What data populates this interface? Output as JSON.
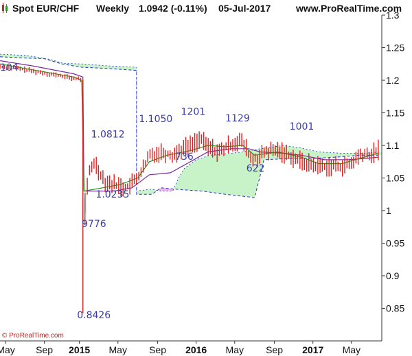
{
  "header": {
    "instrument": "Spot EUR/CHF",
    "period": "Weekly",
    "last": "1.0942 (-0.11%)",
    "date": "05-Jul-2017",
    "site": "www.ProRealTime.com"
  },
  "copyright": "© ProRealTime.com",
  "colors": {
    "candle": "#e02020",
    "tenkan": "#1a9a1a",
    "kijun": "#7a2a9a",
    "cloud_bull": "#c8f2c8",
    "cloud_bear": "#f7b3e3",
    "span_line": "#2233cc",
    "annotation": "#3a3aa8"
  },
  "chart_data": {
    "type": "line",
    "title": "",
    "xlabel": "",
    "ylabel": "",
    "ylim": [
      0.8,
      1.3
    ],
    "yticks": [
      {
        "v": 0.85,
        "label": "0.85"
      },
      {
        "v": 0.9,
        "label": "0.9"
      },
      {
        "v": 0.95,
        "label": "0.95"
      },
      {
        "v": 1.0,
        "label": "1"
      },
      {
        "v": 1.05,
        "label": "1.05"
      },
      {
        "v": 1.1,
        "label": "1.1"
      },
      {
        "v": 1.15,
        "label": "1.15"
      },
      {
        "v": 1.2,
        "label": "1.2"
      },
      {
        "v": 1.25,
        "label": "1.25"
      },
      {
        "v": 1.3,
        "label": "1.3"
      }
    ],
    "xrange": [
      2014.32,
      2017.59
    ],
    "xticks": [
      {
        "t": 2014.37,
        "label": "May",
        "bold": false
      },
      {
        "t": 2014.7,
        "label": "Sep",
        "bold": false
      },
      {
        "t": 2015.0,
        "label": "2015",
        "bold": true
      },
      {
        "t": 2015.33,
        "label": "May",
        "bold": false
      },
      {
        "t": 2015.67,
        "label": "Sep",
        "bold": false
      },
      {
        "t": 2016.0,
        "label": "2016",
        "bold": true
      },
      {
        "t": 2016.33,
        "label": "May",
        "bold": false
      },
      {
        "t": 2016.67,
        "label": "Sep",
        "bold": false
      },
      {
        "t": 2017.0,
        "label": "2017",
        "bold": true
      },
      {
        "t": 2017.33,
        "label": "May",
        "bold": false
      }
    ],
    "price": [
      [
        2014.32,
        1.221
      ],
      [
        2014.45,
        1.219
      ],
      [
        2014.6,
        1.214
      ],
      [
        2014.8,
        1.208
      ],
      [
        2014.95,
        1.203
      ],
      [
        2015.02,
        1.201
      ],
      [
        2015.03,
        0.985
      ],
      [
        2015.06,
        1.028
      ],
      [
        2015.09,
        1.062
      ],
      [
        2015.13,
        1.075
      ],
      [
        2015.17,
        1.06
      ],
      [
        2015.22,
        1.045
      ],
      [
        2015.3,
        1.04
      ],
      [
        2015.4,
        1.035
      ],
      [
        2015.47,
        1.045
      ],
      [
        2015.55,
        1.065
      ],
      [
        2015.6,
        1.085
      ],
      [
        2015.7,
        1.09
      ],
      [
        2015.8,
        1.085
      ],
      [
        2015.88,
        1.095
      ],
      [
        2015.95,
        1.1
      ],
      [
        2016.03,
        1.11
      ],
      [
        2016.1,
        1.098
      ],
      [
        2016.2,
        1.09
      ],
      [
        2016.3,
        1.102
      ],
      [
        2016.37,
        1.108
      ],
      [
        2016.42,
        1.098
      ],
      [
        2016.46,
        1.082
      ],
      [
        2016.48,
        1.078
      ],
      [
        2016.52,
        1.08
      ],
      [
        2016.6,
        1.09
      ],
      [
        2016.7,
        1.092
      ],
      [
        2016.8,
        1.085
      ],
      [
        2016.9,
        1.075
      ],
      [
        2017.0,
        1.07
      ],
      [
        2017.1,
        1.068
      ],
      [
        2017.22,
        1.068
      ],
      [
        2017.32,
        1.07
      ],
      [
        2017.4,
        1.085
      ],
      [
        2017.5,
        1.085
      ],
      [
        2017.56,
        1.094
      ]
    ],
    "tenkan": [
      [
        2014.32,
        1.225
      ],
      [
        2014.6,
        1.216
      ],
      [
        2014.95,
        1.205
      ],
      [
        2015.02,
        1.2
      ],
      [
        2015.04,
        1.03
      ],
      [
        2015.2,
        1.035
      ],
      [
        2015.35,
        1.04
      ],
      [
        2015.5,
        1.05
      ],
      [
        2015.6,
        1.075
      ],
      [
        2015.75,
        1.085
      ],
      [
        2015.95,
        1.092
      ],
      [
        2016.1,
        1.1
      ],
      [
        2016.25,
        1.098
      ],
      [
        2016.4,
        1.1
      ],
      [
        2016.5,
        1.085
      ],
      [
        2016.7,
        1.09
      ],
      [
        2016.9,
        1.082
      ],
      [
        2017.05,
        1.072
      ],
      [
        2017.25,
        1.072
      ],
      [
        2017.4,
        1.08
      ],
      [
        2017.56,
        1.088
      ]
    ],
    "kijun": [
      [
        2014.32,
        1.23
      ],
      [
        2014.6,
        1.222
      ],
      [
        2014.95,
        1.21
      ],
      [
        2015.03,
        1.205
      ],
      [
        2015.04,
        1.03
      ],
      [
        2015.3,
        1.03
      ],
      [
        2015.45,
        1.035
      ],
      [
        2015.6,
        1.055
      ],
      [
        2015.78,
        1.058
      ],
      [
        2015.95,
        1.075
      ],
      [
        2016.1,
        1.09
      ],
      [
        2016.3,
        1.095
      ],
      [
        2016.45,
        1.095
      ],
      [
        2016.55,
        1.09
      ],
      [
        2016.75,
        1.088
      ],
      [
        2016.9,
        1.085
      ],
      [
        2017.1,
        1.078
      ],
      [
        2017.3,
        1.078
      ],
      [
        2017.45,
        1.08
      ],
      [
        2017.56,
        1.082
      ]
    ],
    "spanA": [
      [
        2014.32,
        1.24
      ],
      [
        2014.55,
        1.238
      ],
      [
        2014.75,
        1.232
      ],
      [
        2014.86,
        1.226
      ],
      [
        2015.02,
        1.225
      ],
      [
        2015.25,
        1.222
      ],
      [
        2015.49,
        1.22
      ],
      [
        2015.49,
        1.03
      ],
      [
        2015.62,
        1.033
      ],
      [
        2015.7,
        1.03
      ],
      [
        2015.8,
        1.03
      ],
      [
        2015.85,
        1.05
      ],
      [
        2015.9,
        1.065
      ],
      [
        2016.0,
        1.078
      ],
      [
        2016.12,
        1.085
      ],
      [
        2016.3,
        1.088
      ],
      [
        2016.4,
        1.09
      ],
      [
        2016.55,
        1.095
      ],
      [
        2016.75,
        1.1
      ],
      [
        2016.9,
        1.096
      ],
      [
        2017.05,
        1.09
      ],
      [
        2017.25,
        1.088
      ],
      [
        2017.45,
        1.088
      ],
      [
        2017.56,
        1.09
      ]
    ],
    "spanB": [
      [
        2014.32,
        1.236
      ],
      [
        2014.55,
        1.234
      ],
      [
        2014.7,
        1.233
      ],
      [
        2014.85,
        1.225
      ],
      [
        2015.02,
        1.22
      ],
      [
        2015.25,
        1.218
      ],
      [
        2015.49,
        1.215
      ],
      [
        2015.49,
        1.025
      ],
      [
        2015.62,
        1.025
      ],
      [
        2015.7,
        1.035
      ],
      [
        2015.88,
        1.032
      ],
      [
        2016.05,
        1.03
      ],
      [
        2016.25,
        1.025
      ],
      [
        2016.5,
        1.02
      ],
      [
        2016.55,
        1.055
      ],
      [
        2016.58,
        1.078
      ],
      [
        2016.8,
        1.08
      ],
      [
        2017.0,
        1.08
      ],
      [
        2017.2,
        1.082
      ],
      [
        2017.4,
        1.085
      ],
      [
        2017.56,
        1.085
      ]
    ],
    "annotations": [
      {
        "text": "104",
        "t": 2014.32,
        "v": 1.215
      },
      {
        "text": "0.8426",
        "t": 2014.98,
        "v": 0.835
      },
      {
        "text": "9776",
        "t": 2015.02,
        "v": 0.975
      },
      {
        "text": "1.0812",
        "t": 2015.1,
        "v": 1.112
      },
      {
        "text": "1.0235",
        "t": 2015.14,
        "v": 1.02
      },
      {
        "text": "1.1050",
        "t": 2015.51,
        "v": 1.136
      },
      {
        "text": "1201",
        "t": 2015.87,
        "v": 1.147
      },
      {
        "text": "736",
        "t": 2015.82,
        "v": 1.078
      },
      {
        "text": "1129",
        "t": 2016.25,
        "v": 1.137
      },
      {
        "text": "622",
        "t": 2016.43,
        "v": 1.06
      },
      {
        "text": "1001",
        "t": 2016.8,
        "v": 1.124
      }
    ]
  }
}
